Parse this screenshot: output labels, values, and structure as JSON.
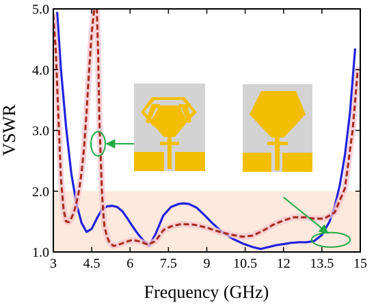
{
  "chart_data": {
    "type": "line",
    "title": "",
    "xlabel": "Frequency (GHz)",
    "ylabel": "VSWR",
    "xlim": [
      3,
      15
    ],
    "ylim": [
      1.0,
      5.0
    ],
    "x_ticks": [
      "3",
      "4.5",
      "6",
      "7.5",
      "9",
      "10.5",
      "12",
      "13.5",
      "15"
    ],
    "y_ticks": [
      "1.0",
      "2.0",
      "3.0",
      "4.0",
      "5.0"
    ],
    "x_tick_values": [
      3,
      4.5,
      6,
      7.5,
      9,
      10.5,
      12,
      13.5,
      15
    ],
    "y_tick_values": [
      1.0,
      2.0,
      3.0,
      4.0,
      5.0
    ],
    "grid": false,
    "legend": "none",
    "shaded_band": {
      "y_from": 1.0,
      "y_to": 2.0,
      "x_from": 3,
      "x_to": 15,
      "color": "#fde9dd"
    },
    "series": [
      {
        "style": "solid",
        "color": "#2222dd",
        "x": [
          3.15,
          3.3,
          3.5,
          3.7,
          3.9,
          4.1,
          4.3,
          4.5,
          4.7,
          4.9,
          5.1,
          5.3,
          5.5,
          5.7,
          5.9,
          6.1,
          6.3,
          6.5,
          6.75,
          7.0,
          7.3,
          7.6,
          7.9,
          8.1,
          8.3,
          8.6,
          8.9,
          9.2,
          9.6,
          10.0,
          10.4,
          10.8,
          11.1,
          11.4,
          11.7,
          12.0,
          12.3,
          12.6,
          12.9,
          13.2,
          13.5,
          13.8,
          14.0,
          14.2,
          14.4,
          14.6,
          14.8
        ],
        "values": [
          4.95,
          4.0,
          3.05,
          2.3,
          1.8,
          1.48,
          1.33,
          1.38,
          1.55,
          1.7,
          1.75,
          1.76,
          1.74,
          1.67,
          1.55,
          1.42,
          1.3,
          1.2,
          1.1,
          1.3,
          1.6,
          1.74,
          1.79,
          1.8,
          1.79,
          1.73,
          1.61,
          1.48,
          1.33,
          1.22,
          1.14,
          1.08,
          1.05,
          1.08,
          1.11,
          1.13,
          1.15,
          1.16,
          1.16,
          1.18,
          1.28,
          1.5,
          1.75,
          2.1,
          2.6,
          3.3,
          4.35
        ]
      },
      {
        "style": "dashed",
        "color": "#a52a1a",
        "x": [
          3.0,
          3.1,
          3.2,
          3.3,
          3.4,
          3.5,
          3.6,
          3.7,
          3.8,
          3.9,
          4.0,
          4.1,
          4.2,
          4.3,
          4.4,
          4.5,
          4.6,
          4.7,
          4.75,
          4.8,
          4.85,
          4.9,
          4.95,
          5.0,
          5.1,
          5.2,
          5.35,
          5.5,
          5.8,
          6.1,
          6.4,
          6.7,
          7.0,
          7.3,
          7.6,
          8.0,
          8.5,
          9.0,
          9.5,
          10.0,
          10.4,
          10.8,
          11.2,
          11.6,
          12.0,
          12.4,
          12.8,
          13.2,
          13.6,
          14.0,
          14.4,
          14.7,
          14.9
        ],
        "values": [
          4.9,
          4.3,
          3.2,
          2.2,
          1.7,
          1.5,
          1.49,
          1.55,
          1.65,
          1.8,
          2.0,
          2.3,
          2.7,
          3.3,
          4.0,
          4.6,
          5.0,
          5.0,
          4.3,
          3.2,
          2.6,
          2.0,
          1.65,
          1.42,
          1.25,
          1.15,
          1.1,
          1.11,
          1.16,
          1.2,
          1.17,
          1.12,
          1.18,
          1.36,
          1.42,
          1.46,
          1.45,
          1.4,
          1.33,
          1.28,
          1.25,
          1.27,
          1.35,
          1.45,
          1.52,
          1.57,
          1.57,
          1.55,
          1.55,
          1.65,
          2.05,
          3.0,
          4.0
        ]
      }
    ],
    "annotations": [
      {
        "type": "ellipse",
        "cx": 4.75,
        "cy": 2.78,
        "rx": 0.28,
        "ry": 0.2,
        "color": "#22aa44",
        "arrow_to": {
          "x": 6.2,
          "y": 2.78
        }
      },
      {
        "type": "ellipse",
        "cx": 13.85,
        "cy": 1.2,
        "rx": 0.75,
        "ry": 0.12,
        "color": "#22aa44",
        "arrow_from": {
          "x": 12.0,
          "y": 1.9
        }
      }
    ]
  },
  "insets": [
    {
      "name": "antenna-inset-slotted",
      "background": "#d3d3d3",
      "patch_color": "#f4be00"
    },
    {
      "name": "antenna-inset-plain",
      "background": "#d3d3d3",
      "patch_color": "#f4be00"
    }
  ]
}
